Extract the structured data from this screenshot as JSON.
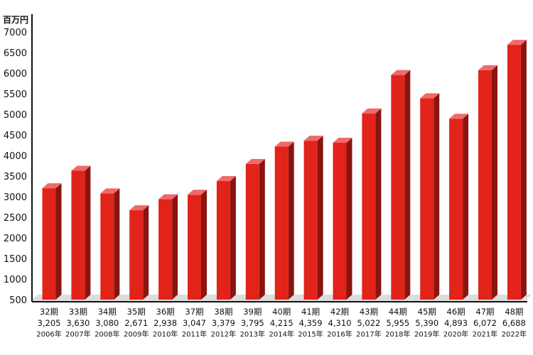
{
  "chart_data": {
    "type": "bar",
    "unit_label": "百万円",
    "categories": [
      "32期",
      "33期",
      "34期",
      "35期",
      "36期",
      "37期",
      "38期",
      "39期",
      "40期",
      "41期",
      "42期",
      "43期",
      "44期",
      "45期",
      "46期",
      "47期",
      "48期"
    ],
    "value_labels": [
      "3,205",
      "3,630",
      "3,080",
      "2,671",
      "2,938",
      "3,047",
      "3,379",
      "3,795",
      "4,215",
      "4,359",
      "4,310",
      "5,022",
      "5,955",
      "5,390",
      "4,893",
      "6,072",
      "6,688"
    ],
    "values": [
      3205,
      3630,
      3080,
      2671,
      2938,
      3047,
      3379,
      3795,
      4215,
      4359,
      4310,
      5022,
      5955,
      5390,
      4893,
      6072,
      6688
    ],
    "years": [
      "2006年",
      "2007年",
      "2008年",
      "2009年",
      "2010年",
      "2011年",
      "2012年",
      "2013年",
      "2014年",
      "2015年",
      "2016年",
      "2017年",
      "2018年",
      "2019年",
      "2020年",
      "2021年",
      "2022年"
    ],
    "yticks": [
      "500",
      "1000",
      "1500",
      "2000",
      "2500",
      "3000",
      "3500",
      "4000",
      "4500",
      "5000",
      "5500",
      "6000",
      "6500",
      "7000"
    ],
    "ylim": [
      500,
      7000
    ],
    "grid": false,
    "colors": {
      "bar_front": "#e2231a",
      "bar_top": "#f06a6a",
      "bar_side": "#8a1410",
      "floor": "#dcdcdc",
      "axis": "#111111"
    }
  }
}
